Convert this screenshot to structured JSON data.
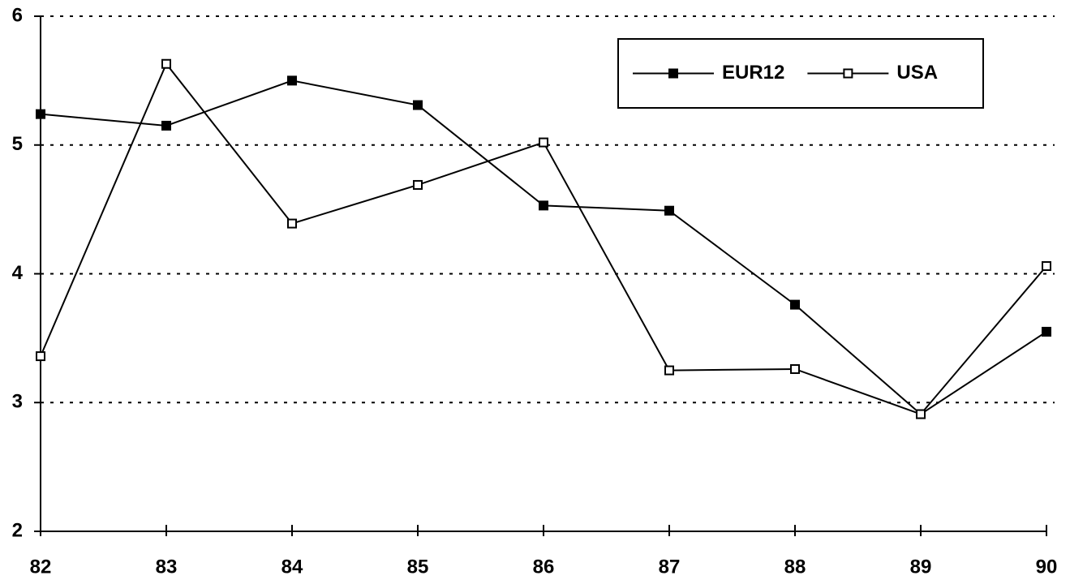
{
  "chart_data": {
    "type": "line",
    "categories": [
      "82",
      "83",
      "84",
      "85",
      "86",
      "87",
      "88",
      "89",
      "90"
    ],
    "series": [
      {
        "name": "EUR12",
        "color": "#000000",
        "marker": "filled-square",
        "values": [
          5.24,
          5.15,
          5.5,
          5.31,
          4.53,
          4.49,
          3.76,
          2.91,
          3.55
        ]
      },
      {
        "name": "USA",
        "color": "#000000",
        "marker": "open-square",
        "values": [
          3.36,
          5.63,
          4.39,
          4.69,
          5.02,
          3.25,
          3.26,
          2.91,
          4.06
        ]
      }
    ],
    "ylim": [
      2,
      6
    ],
    "yticks": [
      2,
      3,
      4,
      5,
      6
    ],
    "grid": true,
    "legend": "upper right"
  }
}
